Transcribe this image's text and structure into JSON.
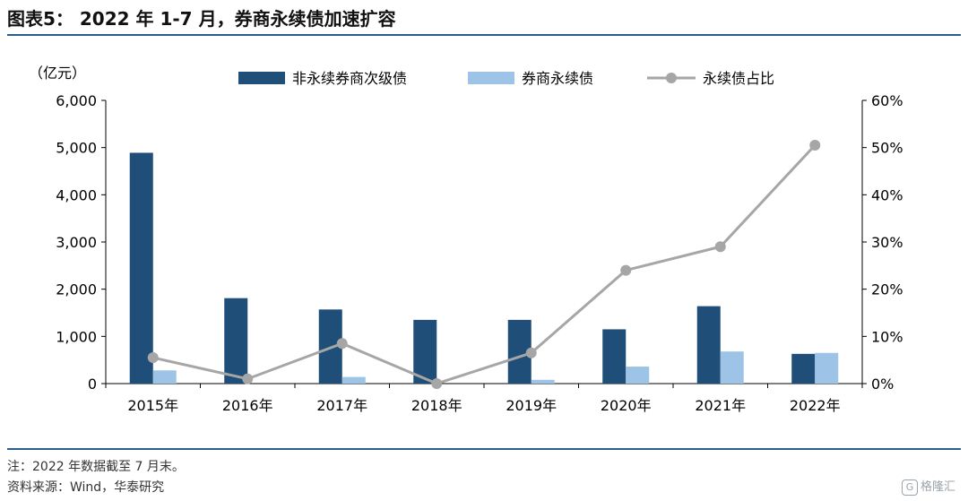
{
  "header": {
    "title": "图表5： 2022 年 1-7 月，券商永续债加速扩容"
  },
  "footer": {
    "note": "注：2022 年数据截至 7 月末。",
    "source": "资料来源：Wind，华泰研究",
    "watermark": "格隆汇",
    "watermark_icon": "G"
  },
  "chart_data": {
    "type": "bar",
    "left_unit": "（亿元）",
    "categories": [
      "2015年",
      "2016年",
      "2017年",
      "2018年",
      "2019年",
      "2020年",
      "2021年",
      "2022年"
    ],
    "series": [
      {
        "name": "非永续券商次级债",
        "type": "bar",
        "axis": "left",
        "color": "#1f4e79",
        "values": [
          4890,
          1810,
          1570,
          1350,
          1350,
          1150,
          1640,
          630
        ]
      },
      {
        "name": "券商永续债",
        "type": "bar",
        "axis": "left",
        "color": "#9dc3e6",
        "values": [
          280,
          0,
          140,
          0,
          80,
          360,
          680,
          650
        ]
      },
      {
        "name": "永续债占比",
        "type": "line",
        "axis": "right",
        "color": "#a6a6a6",
        "values": [
          5.5,
          1.0,
          8.5,
          0.0,
          6.5,
          24.0,
          29.0,
          50.5
        ]
      }
    ],
    "y_left": {
      "min": 0,
      "max": 6000,
      "ticks": [
        0,
        1000,
        2000,
        3000,
        4000,
        5000,
        6000
      ],
      "tick_labels": [
        "0",
        "1,000",
        "2,000",
        "3,000",
        "4,000",
        "5,000",
        "6,000"
      ]
    },
    "y_right": {
      "min": 0,
      "max": 60,
      "ticks": [
        0,
        10,
        20,
        30,
        40,
        50,
        60
      ],
      "tick_labels": [
        "0%",
        "10%",
        "20%",
        "30%",
        "40%",
        "50%",
        "60%"
      ]
    },
    "grid": false,
    "legend": "top-center"
  }
}
